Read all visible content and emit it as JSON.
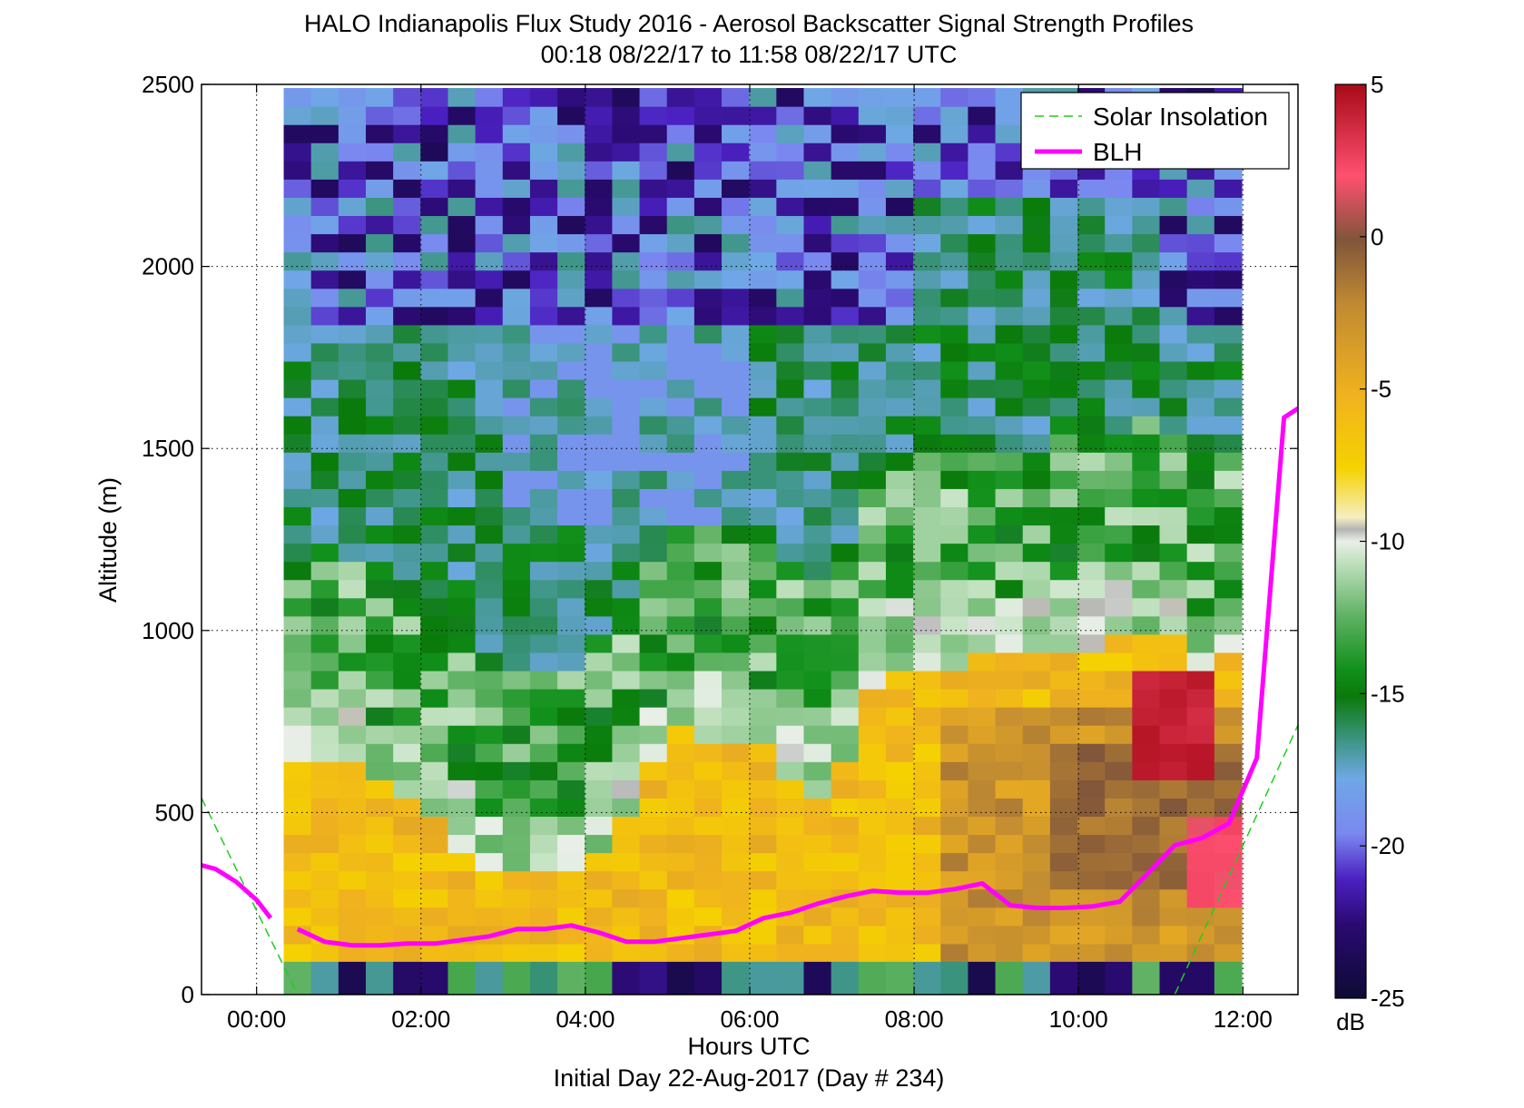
{
  "chart_data": {
    "type": "heatmap",
    "title": "HALO Indianapolis Flux Study 2016 - Aerosol Backscatter Signal Strength Profiles",
    "subtitle": "00:18 08/22/17 to 11:58 08/22/17  UTC",
    "xlabel": "Hours UTC",
    "xlabel2": "Initial Day 22-Aug-2017 (Day # 234)",
    "ylabel": "Altitude (m)",
    "xlim": [
      -0.67,
      12.67
    ],
    "ylim": [
      0,
      2500
    ],
    "x_ticks": [
      0,
      2,
      4,
      6,
      8,
      10,
      12
    ],
    "x_tick_labels": [
      "00:00",
      "02:00",
      "04:00",
      "06:00",
      "08:00",
      "10:00",
      "12:00"
    ],
    "y_ticks": [
      0,
      500,
      1000,
      1500,
      2000,
      2500
    ],
    "y_tick_labels": [
      "0",
      "500",
      "1000",
      "1500",
      "2000",
      "2500"
    ],
    "grid": true,
    "colorbar": {
      "label": "dB",
      "range": [
        -25,
        5
      ],
      "ticks": [
        5,
        0,
        -5,
        -10,
        -15,
        -20,
        -25
      ],
      "tick_labels": [
        "5",
        "0",
        "-5",
        "-10",
        "-15",
        "-20",
        "-25"
      ]
    },
    "heatmap": {
      "x_start": 0.33,
      "dx": 0.333,
      "n_cols": 35,
      "y_start": 90,
      "dy": 50,
      "n_rows": 48
    },
    "legend": {
      "position": "top-right",
      "entries": [
        {
          "label": "Solar Insolation",
          "color": "#22cc22",
          "style": "dashed"
        },
        {
          "label": "BLH",
          "color": "#ff00ff",
          "style": "solid"
        }
      ]
    },
    "series": [
      {
        "name": "BLH",
        "color": "#ff00ff",
        "segments": [
          {
            "x": [
              -0.67,
              -0.5,
              -0.25,
              0,
              0.17
            ],
            "y": [
              355,
              345,
              310,
              260,
              210
            ]
          },
          {
            "x": [
              0.5,
              0.83,
              1.17,
              1.5,
              1.83,
              2.17,
              2.5,
              2.83,
              3.17,
              3.5,
              3.83,
              4.17,
              4.5,
              4.83,
              5.17,
              5.5,
              5.83,
              6.17,
              6.5,
              6.83,
              7.17,
              7.5,
              7.83,
              8.17,
              8.5,
              8.83,
              9.17,
              9.5,
              9.83,
              10.17,
              10.5,
              10.83,
              11.17,
              11.5,
              11.83,
              12.17,
              12.5,
              12.67
            ],
            "y": [
              180,
              145,
              135,
              135,
              140,
              140,
              150,
              160,
              180,
              180,
              190,
              170,
              145,
              145,
              155,
              165,
              175,
              210,
              225,
              250,
              270,
              285,
              280,
              280,
              290,
              305,
              245,
              238,
              238,
              242,
              255,
              330,
              410,
              430,
              470,
              650,
              1585,
              1610
            ]
          }
        ]
      },
      {
        "name": "Solar Insolation",
        "color": "#22cc22",
        "segments": [
          {
            "x": [
              -0.67,
              0.5
            ],
            "y": [
              540,
              0
            ]
          },
          {
            "x": [
              11.17,
              12.67
            ],
            "y": [
              0,
              740
            ]
          }
        ]
      }
    ]
  }
}
